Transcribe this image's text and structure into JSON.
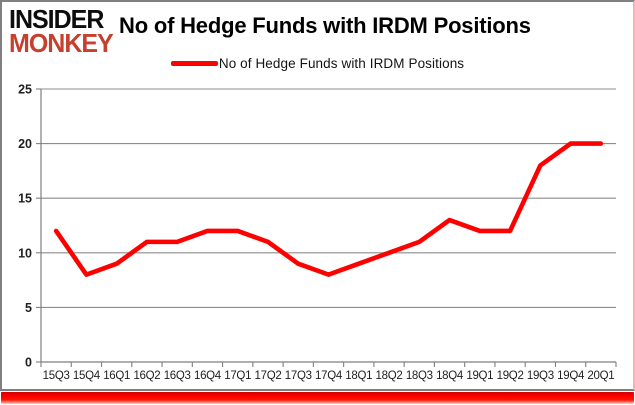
{
  "page": {
    "background_color": "#ffffff",
    "frame_border_color": "#7f7f7f",
    "bottom_bar_color": "#ff0000"
  },
  "logo": {
    "line1": "INSIDER",
    "line2": "MONKEY",
    "line1_color": "#0d0d0d",
    "line2_color": "#c5402e"
  },
  "header": {
    "title": "No of Hedge Funds with IRDM Positions"
  },
  "legend": {
    "label": "No of Hedge Funds with IRDM Positions",
    "swatch_color": "#ff0000"
  },
  "chart_data": {
    "type": "line",
    "title": "No of Hedge Funds with IRDM Positions",
    "categories": [
      "15Q3",
      "15Q4",
      "16Q1",
      "16Q2",
      "16Q3",
      "16Q4",
      "17Q1",
      "17Q2",
      "17Q3",
      "17Q4",
      "18Q1",
      "18Q2",
      "18Q3",
      "18Q4",
      "19Q1",
      "19Q2",
      "19Q3",
      "19Q4",
      "20Q1"
    ],
    "series": [
      {
        "name": "No of Hedge Funds with IRDM Positions",
        "color": "#ff0000",
        "values": [
          12,
          8,
          9,
          11,
          11,
          12,
          12,
          11,
          9,
          8,
          9,
          10,
          11,
          13,
          12,
          12,
          18,
          20,
          20
        ]
      }
    ],
    "xlabel": "",
    "ylabel": "",
    "ylim": [
      0,
      25
    ],
    "yticks": [
      0,
      5,
      10,
      15,
      20,
      25
    ],
    "grid": true,
    "gridline_color": "#8c8c8c",
    "axis_color": "#7f7f7f",
    "tick_label_color": "#1f1f1f",
    "legend_position": "top-center"
  }
}
